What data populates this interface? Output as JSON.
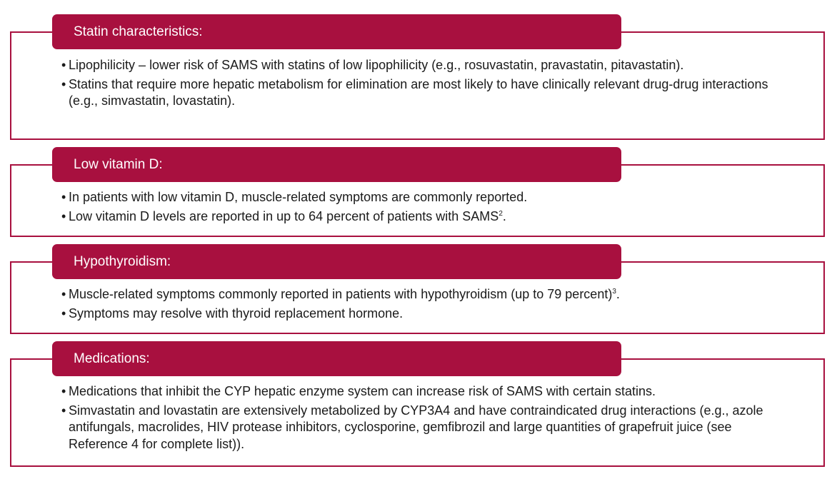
{
  "colors": {
    "accent": "#a8103f",
    "text": "#1a1a1a",
    "background": "#ffffff"
  },
  "bullet_glyph": "•",
  "sections": [
    {
      "title": "Statin characteristics:",
      "bullets": [
        "Lipophilicity – lower risk of SAMS with statins of low lipophilicity (e.g., rosuvastatin, pravastatin, pitavastatin).",
        "Statins that require more hepatic metabolism for elimination are most likely to have clinically relevant drug-drug interactions (e.g., simvastatin, lovastatin)."
      ]
    },
    {
      "title": "Low vitamin D:",
      "bullets": [
        "In patients with low vitamin D, muscle-related symptoms are commonly reported.",
        "Low vitamin D levels are reported in up to 64 percent of patients with SAMS"
      ],
      "sup": "2",
      "sup_tail": "."
    },
    {
      "title": "Hypothyroidism:",
      "bullets": [
        "Muscle-related symptoms commonly reported in patients with hypothyroidism (up to 79 percent)",
        "Symptoms may resolve with thyroid replacement hormone."
      ],
      "sup": "3",
      "sup_tail": "."
    },
    {
      "title": "Medications:",
      "bullets": [
        "Medications that inhibit the CYP hepatic enzyme system can increase risk of SAMS with certain statins.",
        "Simvastatin and lovastatin are extensively metabolized by CYP3A4 and have contraindicated drug interactions (e.g., azole antifungals, macrolides, HIV protease inhibitors, cyclosporine, gemfibrozil and large quantities of grapefruit juice (see Reference 4 for complete list))."
      ]
    }
  ]
}
